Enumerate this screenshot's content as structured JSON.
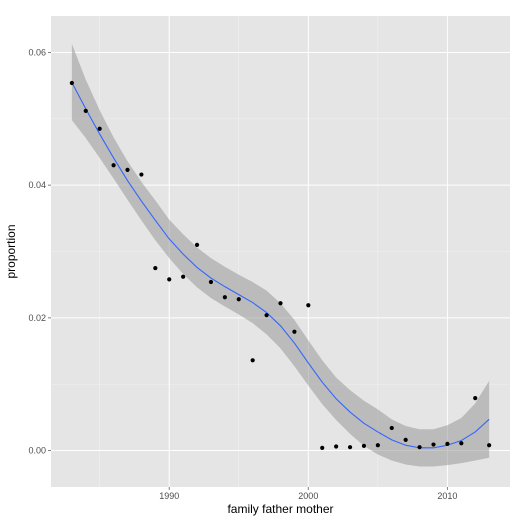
{
  "chart_data": {
    "type": "scatter",
    "title": "",
    "xlabel": "family father mother",
    "ylabel": "proportion",
    "xlim": [
      1981.5,
      2014.5
    ],
    "ylim": [
      -0.0055,
      0.0655
    ],
    "x_ticks": [
      1990,
      2000,
      2010
    ],
    "x_tick_labels": [
      "1990",
      "2000",
      "2010"
    ],
    "y_ticks": [
      0,
      0.02,
      0.04,
      0.06
    ],
    "y_tick_labels": [
      "0.00",
      "0.02",
      "0.04",
      "0.06"
    ],
    "grid": true,
    "points": {
      "x": [
        1983,
        1984,
        1985,
        1986,
        1987,
        1988,
        1989,
        1990,
        1991,
        1992,
        1993,
        1994,
        1995,
        1996,
        1997,
        1998,
        1999,
        2000,
        2001,
        2002,
        2003,
        2004,
        2005,
        2006,
        2007,
        2008,
        2009,
        2010,
        2011,
        2012,
        2013
      ],
      "y": [
        0.0554,
        0.0512,
        0.0485,
        0.043,
        0.0423,
        0.0416,
        0.0275,
        0.0258,
        0.0262,
        0.031,
        0.0254,
        0.0231,
        0.0228,
        0.0136,
        0.0204,
        0.0222,
        0.0179,
        0.0219,
        0.0004,
        0.0006,
        0.0005,
        0.0007,
        0.0008,
        0.0034,
        0.0016,
        0.0005,
        0.0009,
        0.001,
        0.0011,
        0.0079,
        0.0008
      ]
    },
    "smooth": {
      "x": [
        1983,
        1984,
        1985,
        1986,
        1987,
        1988,
        1989,
        1990,
        1991,
        1992,
        1993,
        1994,
        1995,
        1996,
        1997,
        1998,
        1999,
        2000,
        2001,
        2002,
        2003,
        2004,
        2005,
        2006,
        2007,
        2008,
        2009,
        2010,
        2011,
        2012,
        2013
      ],
      "y": [
        0.0555,
        0.0515,
        0.0477,
        0.0441,
        0.0407,
        0.0376,
        0.0347,
        0.0319,
        0.0296,
        0.0276,
        0.026,
        0.0247,
        0.0235,
        0.0223,
        0.0208,
        0.0188,
        0.0162,
        0.0132,
        0.0103,
        0.0078,
        0.0058,
        0.0041,
        0.0028,
        0.0016,
        0.0008,
        0.0004,
        0.0004,
        0.0008,
        0.0015,
        0.0028,
        0.0047
      ],
      "lower": [
        0.0498,
        0.0471,
        0.0441,
        0.041,
        0.0378,
        0.0347,
        0.0317,
        0.029,
        0.0266,
        0.0246,
        0.023,
        0.0217,
        0.0205,
        0.0192,
        0.0175,
        0.0154,
        0.0127,
        0.0098,
        0.007,
        0.0046,
        0.0025,
        0.0007,
        -0.0006,
        -0.0015,
        -0.0021,
        -0.0024,
        -0.0024,
        -0.0022,
        -0.0019,
        -0.0015,
        -0.0011
      ],
      "upper": [
        0.0613,
        0.0559,
        0.0513,
        0.0472,
        0.0436,
        0.0405,
        0.0377,
        0.0348,
        0.0326,
        0.0306,
        0.029,
        0.0277,
        0.0265,
        0.0254,
        0.0241,
        0.0222,
        0.0197,
        0.0166,
        0.0136,
        0.011,
        0.0091,
        0.0075,
        0.0062,
        0.0047,
        0.0037,
        0.0032,
        0.0032,
        0.0038,
        0.0049,
        0.0071,
        0.0105
      ]
    },
    "colors": {
      "panel": "#e5e5e5",
      "grid_major": "#ffffff",
      "grid_minor": "#f2f2f2",
      "point": "#000000",
      "line": "#3366ff",
      "ribbon": "#999999"
    }
  }
}
